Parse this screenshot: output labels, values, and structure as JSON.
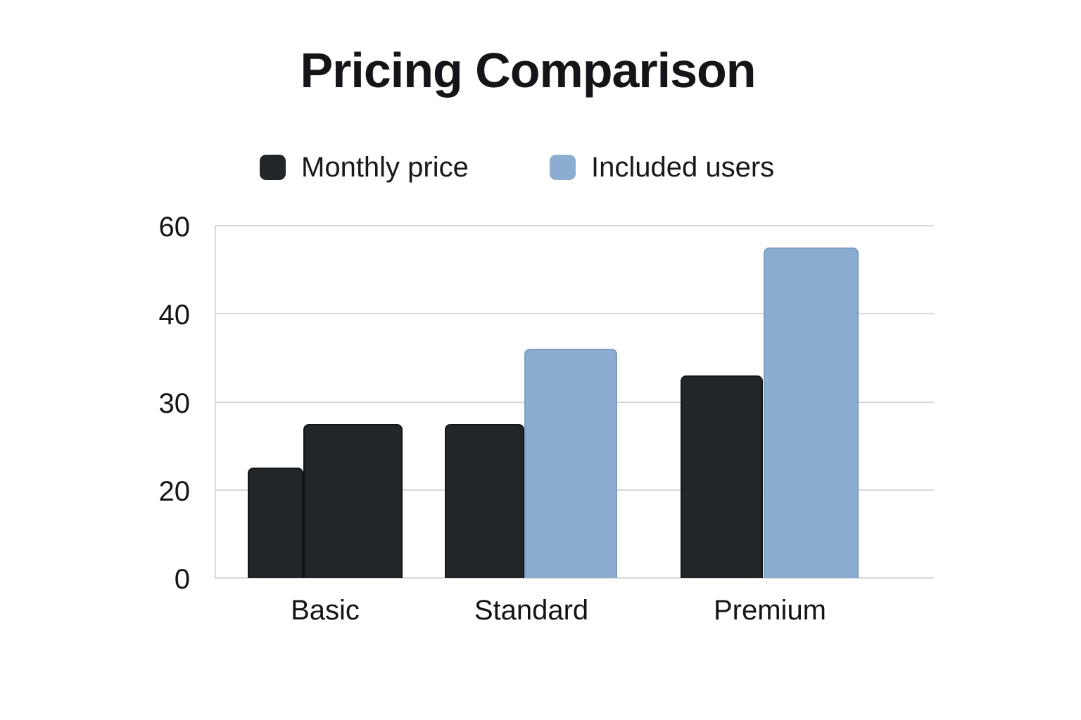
{
  "title": "Pricing Comparison",
  "chart_data": {
    "type": "bar",
    "title": "Pricing Comparison",
    "categories": [
      "Basic",
      "Standard",
      "Premium"
    ],
    "series": [
      {
        "name": "Monthly price",
        "color": "#232629",
        "border_color": "#121417",
        "values": [
          22.5,
          27.5,
          33
        ]
      },
      {
        "name": "Included users",
        "color": "#8badcf",
        "border_color": "#7d9dc1",
        "values": [
          27.5,
          36,
          55
        ],
        "point_colors": [
          "#232629",
          "#8badcf",
          "#8badcf"
        ],
        "point_border_colors": [
          "#121417",
          "#7d9dc1",
          "#7d9dc1"
        ]
      }
    ],
    "y_axis": {
      "ticks": [
        0,
        20,
        30,
        40,
        60
      ],
      "tick_labels": [
        "0",
        "20",
        "30",
        "40",
        "60"
      ],
      "evenly_spaced_ticks": true
    },
    "x_axis": {
      "labels": [
        "Basic",
        "Standard",
        "Premium"
      ]
    },
    "grid": true,
    "legend_position": "top",
    "background": "#ffffff",
    "colors": {
      "gridline": "#d8d8d8",
      "axis_line": "#d8d8d8",
      "tick_text": "#131416",
      "title_text": "#141519"
    }
  }
}
